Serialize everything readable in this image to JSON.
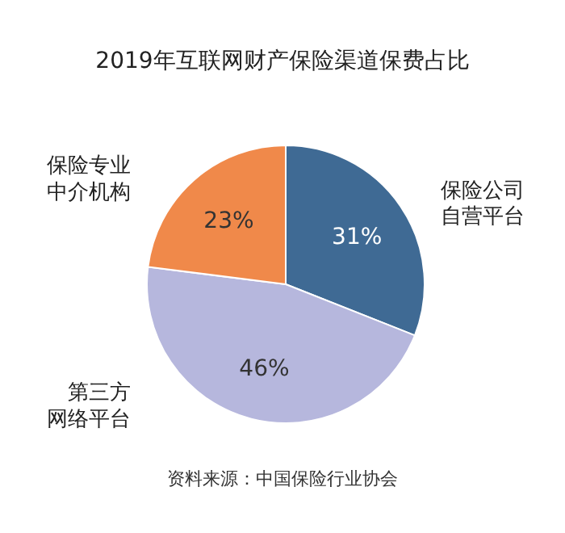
{
  "chart_data": {
    "type": "pie",
    "title": "2019年互联网财产保险渠道保费占比",
    "categories": [
      "保险公司自营平台",
      "第三方网络平台",
      "保险专业中介机构"
    ],
    "values": [
      31,
      46,
      23
    ],
    "colors": [
      "#3f6a94",
      "#b6b7dd",
      "#f0894a"
    ],
    "value_labels": [
      "31%",
      "46%",
      "23%"
    ],
    "annotations": [
      "资料来源：中国保险行业协会"
    ]
  }
}
